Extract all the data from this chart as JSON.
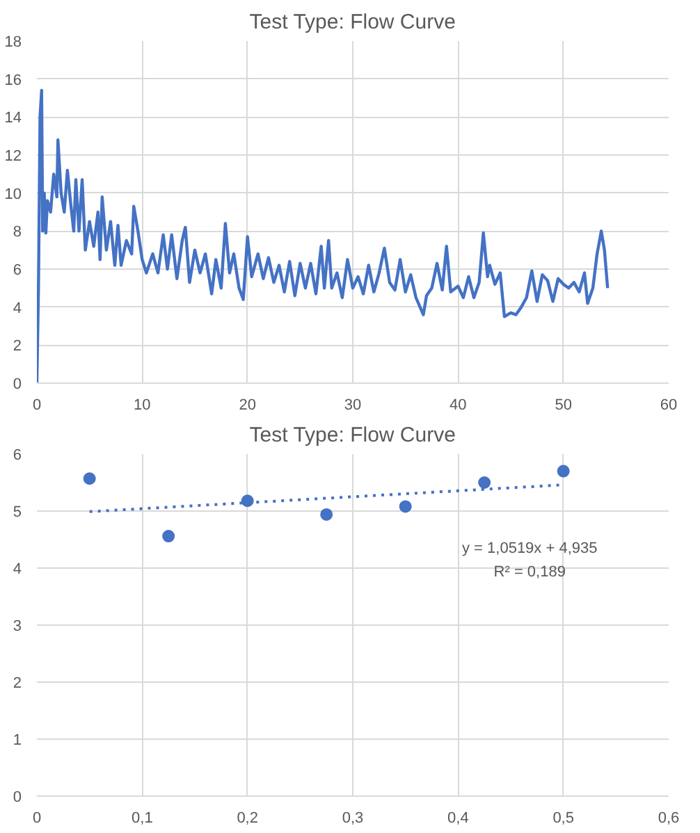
{
  "chart_data": [
    {
      "type": "line",
      "title": "Test Type: Flow Curve",
      "xlim": [
        0,
        60
      ],
      "ylim": [
        0,
        18
      ],
      "xticks": [
        0,
        10,
        20,
        30,
        40,
        50,
        60
      ],
      "yticks": [
        0,
        2,
        4,
        6,
        8,
        10,
        12,
        14,
        16,
        18
      ],
      "grid": true,
      "marker": "none",
      "line_style": "solid",
      "series": [
        {
          "color": "#4472c4",
          "x": [
            0,
            0.15,
            0.3,
            0.45,
            0.55,
            0.7,
            0.85,
            1,
            1.3,
            1.6,
            1.9,
            2.0,
            2.3,
            2.6,
            2.9,
            3.2,
            3.5,
            3.7,
            4,
            4.3,
            4.6,
            5,
            5.4,
            5.8,
            6,
            6.2,
            6.6,
            7,
            7.4,
            7.7,
            8,
            8.5,
            9,
            9.2,
            9.6,
            10,
            10.4,
            11,
            11.5,
            12,
            12.4,
            12.8,
            13.3,
            13.8,
            14.1,
            14.5,
            15,
            15.5,
            16,
            16.6,
            17,
            17.5,
            17.9,
            18.3,
            18.7,
            19.2,
            19.6,
            20,
            20.4,
            21,
            21.5,
            22,
            22.5,
            23,
            23.5,
            24,
            24.5,
            25,
            25.5,
            26,
            26.5,
            27,
            27.3,
            27.7,
            28,
            28.5,
            29,
            29.5,
            30,
            30.5,
            31,
            31.5,
            32,
            32.5,
            33,
            33.5,
            34,
            34.5,
            35,
            35.5,
            36,
            36.7,
            37,
            37.5,
            38,
            38.5,
            38.9,
            39.3,
            40,
            40.5,
            41,
            41.5,
            42,
            42.4,
            42.8,
            43,
            43.5,
            44,
            44.4,
            45,
            45.5,
            46,
            46.5,
            47,
            47.5,
            48,
            48.5,
            49,
            49.5,
            50,
            50.5,
            51,
            51.5,
            52,
            52.3,
            52.8,
            53.2,
            53.6,
            53.9,
            54.2
          ],
          "values": [
            0,
            5,
            14,
            15.4,
            8,
            10,
            7.9,
            9.6,
            9,
            11,
            9.8,
            12.8,
            10,
            9,
            11.2,
            9.5,
            8,
            10.7,
            8,
            10.7,
            7,
            8.5,
            7.2,
            9,
            6.5,
            9.8,
            7,
            8.5,
            6.2,
            8.3,
            6.2,
            7.5,
            6.8,
            9.3,
            8,
            6.5,
            5.8,
            6.8,
            5.8,
            7.8,
            6,
            7.8,
            5.5,
            7.5,
            8.2,
            5.3,
            7,
            5.8,
            6.8,
            4.7,
            6.5,
            5,
            8.4,
            5.8,
            6.8,
            5,
            4.4,
            7.7,
            5.6,
            6.8,
            5.5,
            6.6,
            5.3,
            6.2,
            4.8,
            6.4,
            4.6,
            6.3,
            5,
            6.3,
            4.7,
            7.2,
            5,
            7.5,
            5,
            5.8,
            4.5,
            6.5,
            5,
            5.6,
            4.7,
            6.2,
            4.8,
            5.8,
            7.1,
            5.3,
            4.9,
            6.5,
            4.8,
            5.7,
            4.5,
            3.6,
            4.6,
            5,
            6.3,
            4.9,
            7.2,
            4.8,
            5.1,
            4.5,
            5.6,
            4.5,
            5.3,
            7.9,
            5.6,
            6.2,
            5.2,
            5.8,
            3.5,
            3.7,
            3.6,
            4.0,
            4.5,
            5.9,
            4.3,
            5.7,
            5.4,
            4.3,
            5.5,
            5.2,
            5.0,
            5.3,
            4.8,
            5.8,
            4.2,
            5,
            6.8,
            8,
            7,
            5
          ]
        }
      ]
    },
    {
      "type": "scatter",
      "title": "Test Type: Flow Curve",
      "xlim": [
        0,
        0.6
      ],
      "ylim": [
        0,
        6
      ],
      "xticks": [
        0,
        {
          "value": 0.1,
          "label": "0,1"
        },
        {
          "value": 0.2,
          "label": "0,2"
        },
        {
          "value": 0.3,
          "label": "0,3"
        },
        {
          "value": 0.4,
          "label": "0,4"
        },
        {
          "value": 0.5,
          "label": "0,5"
        },
        {
          "value": 0.6,
          "label": "0,6"
        }
      ],
      "yticks": [
        0,
        1,
        2,
        3,
        4,
        5,
        6
      ],
      "grid": true,
      "marker": "circle",
      "x": [
        0.05,
        0.125,
        0.2,
        0.275,
        0.35,
        0.425,
        0.5
      ],
      "annotations": [
        "y = 1,0519x + 4,935",
        "R² = 0,189"
      ],
      "series": [
        {
          "type": "scatter",
          "color": "#4472c4",
          "values": [
            5.57,
            4.56,
            5.18,
            4.94,
            5.08,
            5.5,
            5.7
          ]
        },
        {
          "type": "line",
          "color": "#4472c4",
          "line_style": "dotted",
          "marker": "none",
          "x": [
            0.05,
            0.5
          ],
          "values": [
            4.99,
            5.46
          ]
        }
      ]
    }
  ]
}
